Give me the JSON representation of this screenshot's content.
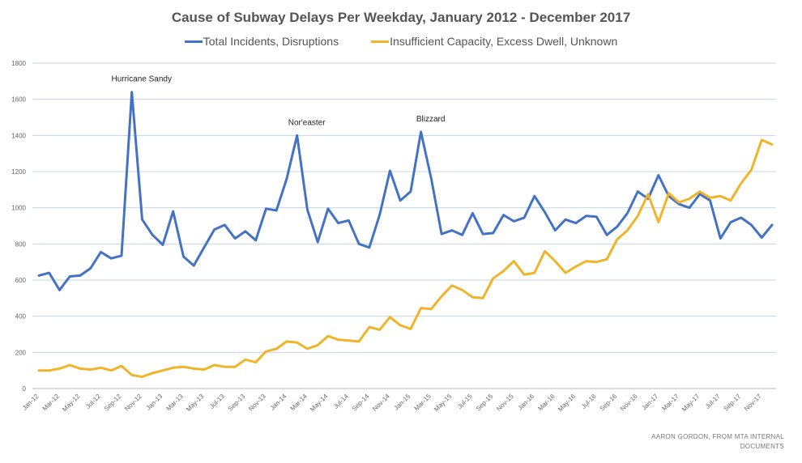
{
  "chart_data": {
    "type": "line",
    "title": "Cause of Subway Delays Per Weekday, January 2012 - December 2017",
    "credit_line1": "AARON GORDON, FROM MTA INTERNAL",
    "credit_line2": "DOCUMENTS",
    "ylim": [
      0,
      1800
    ],
    "y_ticks": [
      0,
      200,
      400,
      600,
      800,
      1000,
      1200,
      1400,
      1600,
      1800
    ],
    "grid": true,
    "legend_position": "top",
    "x_tick_labels": [
      "Jan-12",
      "Mar-12",
      "May-12",
      "Jul-12",
      "Sep-12",
      "Nov-12",
      "Jan-13",
      "Mar-13",
      "May-13",
      "Jul-13",
      "Sep-13",
      "Nov-13",
      "Jan-14",
      "Mar-14",
      "May-14",
      "Jul-14",
      "Sep-14",
      "Nov-14",
      "Jan-15",
      "Mar-15",
      "May-15",
      "Jul-15",
      "Sep-15",
      "Nov-15",
      "Jan-16",
      "Mar-16",
      "May-16",
      "Jul-16",
      "Sep-16",
      "Nov-16",
      "Jan-17",
      "Mar-17",
      "May-17",
      "Jul-17",
      "Sep-17",
      "Nov-17"
    ],
    "series": [
      {
        "name": "Total Incidents, Disruptions",
        "color": "#4472c4",
        "values": [
          625,
          640,
          545,
          620,
          625,
          665,
          755,
          720,
          735,
          1640,
          935,
          850,
          795,
          980,
          730,
          680,
          780,
          880,
          905,
          830,
          870,
          820,
          995,
          985,
          1160,
          1400,
          990,
          810,
          995,
          915,
          930,
          800,
          780,
          960,
          1205,
          1040,
          1090,
          1420,
          1160,
          855,
          875,
          850,
          970,
          855,
          860,
          960,
          925,
          945,
          1065,
          975,
          875,
          935,
          915,
          955,
          950,
          850,
          895,
          970,
          1090,
          1050,
          1180,
          1065,
          1020,
          1000,
          1075,
          1040,
          830,
          920,
          945,
          905,
          835,
          905
        ]
      },
      {
        "name": "Insufficient Capacity, Excess Dwell, Unknown",
        "color": "#f0b429",
        "values": [
          100,
          100,
          110,
          130,
          110,
          105,
          115,
          100,
          125,
          75,
          65,
          85,
          100,
          115,
          120,
          110,
          105,
          130,
          120,
          120,
          160,
          145,
          205,
          220,
          260,
          255,
          220,
          240,
          290,
          270,
          265,
          260,
          340,
          325,
          395,
          350,
          330,
          445,
          440,
          510,
          570,
          545,
          505,
          500,
          610,
          650,
          705,
          630,
          640,
          760,
          705,
          640,
          675,
          705,
          700,
          715,
          825,
          875,
          955,
          1075,
          920,
          1080,
          1030,
          1050,
          1090,
          1055,
          1065,
          1040,
          1135,
          1210,
          1375,
          1350
        ]
      }
    ],
    "annotations": [
      {
        "text": "Hurricane Sandy",
        "index": 9,
        "value": 1640
      },
      {
        "text": "Nor'easter",
        "index": 25,
        "value": 1400
      },
      {
        "text": "Blizzard",
        "index": 37,
        "value": 1420
      }
    ]
  }
}
